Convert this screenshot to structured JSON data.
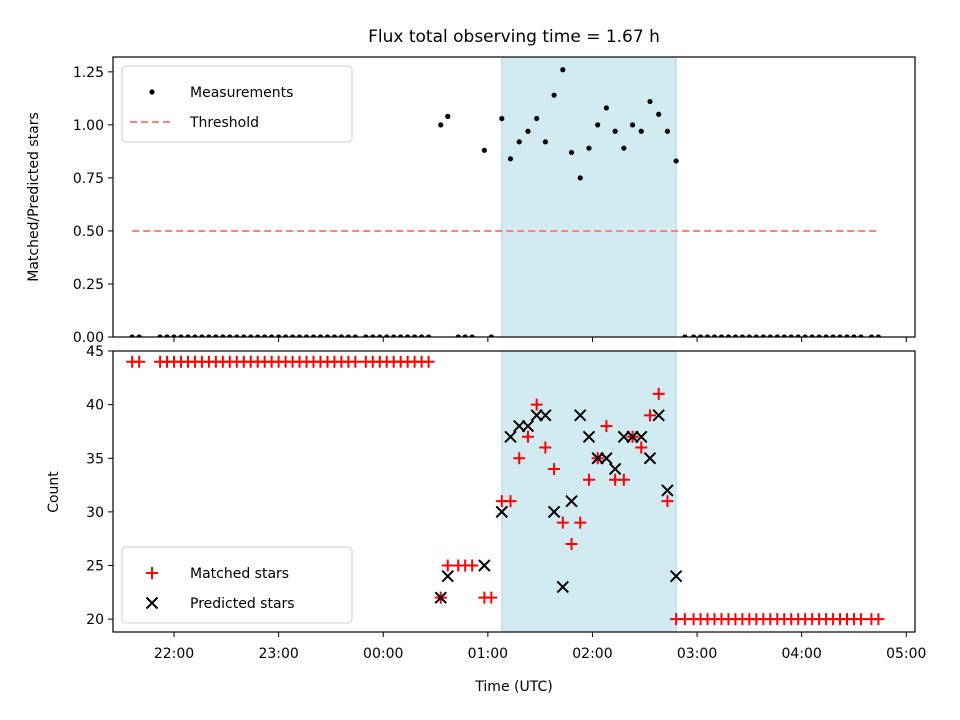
{
  "title": "Flux total observing time = 1.67 h",
  "x_axis_label": "Time (UTC)",
  "x_tick_labels": [
    "22:00",
    "23:00",
    "00:00",
    "01:00",
    "02:00",
    "03:00",
    "04:00",
    "05:00"
  ],
  "colors": {
    "measurement": "#000000",
    "threshold": "#ff7f7f",
    "matched": "#ff0000",
    "predicted": "#000000",
    "shade": "#add8e6"
  },
  "chart_data": [
    {
      "type": "scatter",
      "ylabel": "Matched/Predicted stars",
      "y_tick_labels": [
        "0.00",
        "0.25",
        "0.50",
        "0.75",
        "1.00",
        "1.25"
      ],
      "ylim": [
        0,
        1.32
      ],
      "xlim": [
        "21:25",
        "05:05"
      ],
      "x_ticks": [
        "22:00",
        "23:00",
        "00:00",
        "01:00",
        "02:00",
        "03:00",
        "04:00",
        "05:00"
      ],
      "shaded_interval": [
        "01:08",
        "02:48"
      ],
      "legend": {
        "position": "top-left",
        "entries": [
          "Measurements",
          "Threshold"
        ]
      },
      "series": [
        {
          "name": "Measurements",
          "marker": "dot",
          "points": [
            [
              "21:36",
              0
            ],
            [
              "21:40",
              0
            ],
            [
              "21:52",
              0
            ],
            [
              "21:56",
              0
            ],
            [
              "22:00",
              0
            ],
            [
              "22:04",
              0
            ],
            [
              "22:08",
              0
            ],
            [
              "22:12",
              0
            ],
            [
              "22:16",
              0
            ],
            [
              "22:20",
              0
            ],
            [
              "22:24",
              0
            ],
            [
              "22:28",
              0
            ],
            [
              "22:32",
              0
            ],
            [
              "22:36",
              0
            ],
            [
              "22:40",
              0
            ],
            [
              "22:44",
              0
            ],
            [
              "22:48",
              0
            ],
            [
              "22:52",
              0
            ],
            [
              "22:56",
              0
            ],
            [
              "23:00",
              0
            ],
            [
              "23:04",
              0
            ],
            [
              "23:08",
              0
            ],
            [
              "23:12",
              0
            ],
            [
              "23:16",
              0
            ],
            [
              "23:20",
              0
            ],
            [
              "23:24",
              0
            ],
            [
              "23:28",
              0
            ],
            [
              "23:32",
              0
            ],
            [
              "23:36",
              0
            ],
            [
              "23:40",
              0
            ],
            [
              "23:44",
              0
            ],
            [
              "23:50",
              0
            ],
            [
              "23:54",
              0
            ],
            [
              "23:58",
              0
            ],
            [
              "00:02",
              0
            ],
            [
              "00:06",
              0
            ],
            [
              "00:10",
              0
            ],
            [
              "00:14",
              0
            ],
            [
              "00:18",
              0
            ],
            [
              "00:22",
              0
            ],
            [
              "00:26",
              0
            ],
            [
              "00:33",
              1.0
            ],
            [
              "00:37",
              1.04
            ],
            [
              "00:43",
              0
            ],
            [
              "00:47",
              0
            ],
            [
              "00:51",
              0
            ],
            [
              "00:58",
              0.88
            ],
            [
              "01:02",
              0
            ],
            [
              "01:08",
              1.03
            ],
            [
              "01:13",
              0.84
            ],
            [
              "01:18",
              0.92
            ],
            [
              "01:23",
              0.97
            ],
            [
              "01:28",
              1.03
            ],
            [
              "01:33",
              0.92
            ],
            [
              "01:38",
              1.14
            ],
            [
              "01:43",
              1.26
            ],
            [
              "01:48",
              0.87
            ],
            [
              "01:53",
              0.75
            ],
            [
              "01:58",
              0.89
            ],
            [
              "02:03",
              1.0
            ],
            [
              "02:08",
              1.08
            ],
            [
              "02:13",
              0.97
            ],
            [
              "02:18",
              0.89
            ],
            [
              "02:23",
              1.0
            ],
            [
              "02:28",
              0.97
            ],
            [
              "02:33",
              1.11
            ],
            [
              "02:38",
              1.05
            ],
            [
              "02:43",
              0.97
            ],
            [
              "02:48",
              0.83
            ],
            [
              "02:53",
              0
            ],
            [
              "02:58",
              0
            ],
            [
              "03:02",
              0
            ],
            [
              "03:06",
              0
            ],
            [
              "03:10",
              0
            ],
            [
              "03:14",
              0
            ],
            [
              "03:18",
              0
            ],
            [
              "03:22",
              0
            ],
            [
              "03:26",
              0
            ],
            [
              "03:30",
              0
            ],
            [
              "03:34",
              0
            ],
            [
              "03:38",
              0
            ],
            [
              "03:42",
              0
            ],
            [
              "03:46",
              0
            ],
            [
              "03:50",
              0
            ],
            [
              "03:54",
              0
            ],
            [
              "03:58",
              0
            ],
            [
              "04:02",
              0
            ],
            [
              "04:06",
              0
            ],
            [
              "04:10",
              0
            ],
            [
              "04:14",
              0
            ],
            [
              "04:18",
              0
            ],
            [
              "04:22",
              0
            ],
            [
              "04:26",
              0
            ],
            [
              "04:30",
              0
            ],
            [
              "04:34",
              0
            ],
            [
              "04:40",
              0
            ],
            [
              "04:44",
              0
            ]
          ]
        },
        {
          "name": "Threshold",
          "marker": "dashed-line",
          "points": [
            [
              "21:36",
              0.5
            ],
            [
              "04:44",
              0.5
            ]
          ]
        }
      ]
    },
    {
      "type": "scatter",
      "ylabel": "Count",
      "y_tick_labels": [
        "20",
        "25",
        "30",
        "35",
        "40",
        "45"
      ],
      "ylim": [
        18.8,
        45
      ],
      "xlim": [
        "21:25",
        "05:05"
      ],
      "x_ticks": [
        "22:00",
        "23:00",
        "00:00",
        "01:00",
        "02:00",
        "03:00",
        "04:00",
        "05:00"
      ],
      "shaded_interval": [
        "01:08",
        "02:48"
      ],
      "legend": {
        "position": "bottom-left",
        "entries": [
          "Matched stars",
          "Predicted stars"
        ]
      },
      "series": [
        {
          "name": "Matched stars",
          "marker": "plus",
          "points": [
            [
              "21:36",
              44
            ],
            [
              "21:40",
              44
            ],
            [
              "21:52",
              44
            ],
            [
              "21:56",
              44
            ],
            [
              "22:00",
              44
            ],
            [
              "22:04",
              44
            ],
            [
              "22:08",
              44
            ],
            [
              "22:12",
              44
            ],
            [
              "22:16",
              44
            ],
            [
              "22:20",
              44
            ],
            [
              "22:24",
              44
            ],
            [
              "22:28",
              44
            ],
            [
              "22:32",
              44
            ],
            [
              "22:36",
              44
            ],
            [
              "22:40",
              44
            ],
            [
              "22:44",
              44
            ],
            [
              "22:48",
              44
            ],
            [
              "22:52",
              44
            ],
            [
              "22:56",
              44
            ],
            [
              "23:00",
              44
            ],
            [
              "23:04",
              44
            ],
            [
              "23:08",
              44
            ],
            [
              "23:12",
              44
            ],
            [
              "23:16",
              44
            ],
            [
              "23:20",
              44
            ],
            [
              "23:24",
              44
            ],
            [
              "23:28",
              44
            ],
            [
              "23:32",
              44
            ],
            [
              "23:36",
              44
            ],
            [
              "23:40",
              44
            ],
            [
              "23:44",
              44
            ],
            [
              "23:50",
              44
            ],
            [
              "23:54",
              44
            ],
            [
              "23:58",
              44
            ],
            [
              "00:02",
              44
            ],
            [
              "00:06",
              44
            ],
            [
              "00:10",
              44
            ],
            [
              "00:14",
              44
            ],
            [
              "00:18",
              44
            ],
            [
              "00:22",
              44
            ],
            [
              "00:26",
              44
            ],
            [
              "00:33",
              22
            ],
            [
              "00:37",
              25
            ],
            [
              "00:43",
              25
            ],
            [
              "00:47",
              25
            ],
            [
              "00:51",
              25
            ],
            [
              "00:58",
              22
            ],
            [
              "01:02",
              22
            ],
            [
              "01:08",
              31
            ],
            [
              "01:13",
              31
            ],
            [
              "01:18",
              35
            ],
            [
              "01:23",
              37
            ],
            [
              "01:28",
              40
            ],
            [
              "01:33",
              36
            ],
            [
              "01:38",
              34
            ],
            [
              "01:43",
              29
            ],
            [
              "01:48",
              27
            ],
            [
              "01:53",
              29
            ],
            [
              "01:58",
              33
            ],
            [
              "02:03",
              35
            ],
            [
              "02:08",
              38
            ],
            [
              "02:13",
              33
            ],
            [
              "02:18",
              33
            ],
            [
              "02:23",
              37
            ],
            [
              "02:28",
              36
            ],
            [
              "02:33",
              39
            ],
            [
              "02:38",
              41
            ],
            [
              "02:43",
              31
            ],
            [
              "02:48",
              20
            ],
            [
              "02:53",
              20
            ],
            [
              "02:58",
              20
            ],
            [
              "03:02",
              20
            ],
            [
              "03:06",
              20
            ],
            [
              "03:10",
              20
            ],
            [
              "03:14",
              20
            ],
            [
              "03:18",
              20
            ],
            [
              "03:22",
              20
            ],
            [
              "03:26",
              20
            ],
            [
              "03:30",
              20
            ],
            [
              "03:34",
              20
            ],
            [
              "03:38",
              20
            ],
            [
              "03:42",
              20
            ],
            [
              "03:46",
              20
            ],
            [
              "03:50",
              20
            ],
            [
              "03:54",
              20
            ],
            [
              "03:58",
              20
            ],
            [
              "04:02",
              20
            ],
            [
              "04:06",
              20
            ],
            [
              "04:10",
              20
            ],
            [
              "04:14",
              20
            ],
            [
              "04:18",
              20
            ],
            [
              "04:22",
              20
            ],
            [
              "04:26",
              20
            ],
            [
              "04:30",
              20
            ],
            [
              "04:34",
              20
            ],
            [
              "04:40",
              20
            ],
            [
              "04:44",
              20
            ]
          ]
        },
        {
          "name": "Predicted stars",
          "marker": "x",
          "points": [
            [
              "00:33",
              22
            ],
            [
              "00:37",
              24
            ],
            [
              "00:58",
              25
            ],
            [
              "01:08",
              30
            ],
            [
              "01:13",
              37
            ],
            [
              "01:18",
              38
            ],
            [
              "01:23",
              38
            ],
            [
              "01:28",
              39
            ],
            [
              "01:33",
              39
            ],
            [
              "01:38",
              30
            ],
            [
              "01:43",
              23
            ],
            [
              "01:48",
              31
            ],
            [
              "01:53",
              39
            ],
            [
              "01:58",
              37
            ],
            [
              "02:03",
              35
            ],
            [
              "02:08",
              35
            ],
            [
              "02:13",
              34
            ],
            [
              "02:18",
              37
            ],
            [
              "02:23",
              37
            ],
            [
              "02:28",
              37
            ],
            [
              "02:33",
              35
            ],
            [
              "02:38",
              39
            ],
            [
              "02:43",
              32
            ],
            [
              "02:48",
              24
            ]
          ]
        }
      ]
    }
  ]
}
